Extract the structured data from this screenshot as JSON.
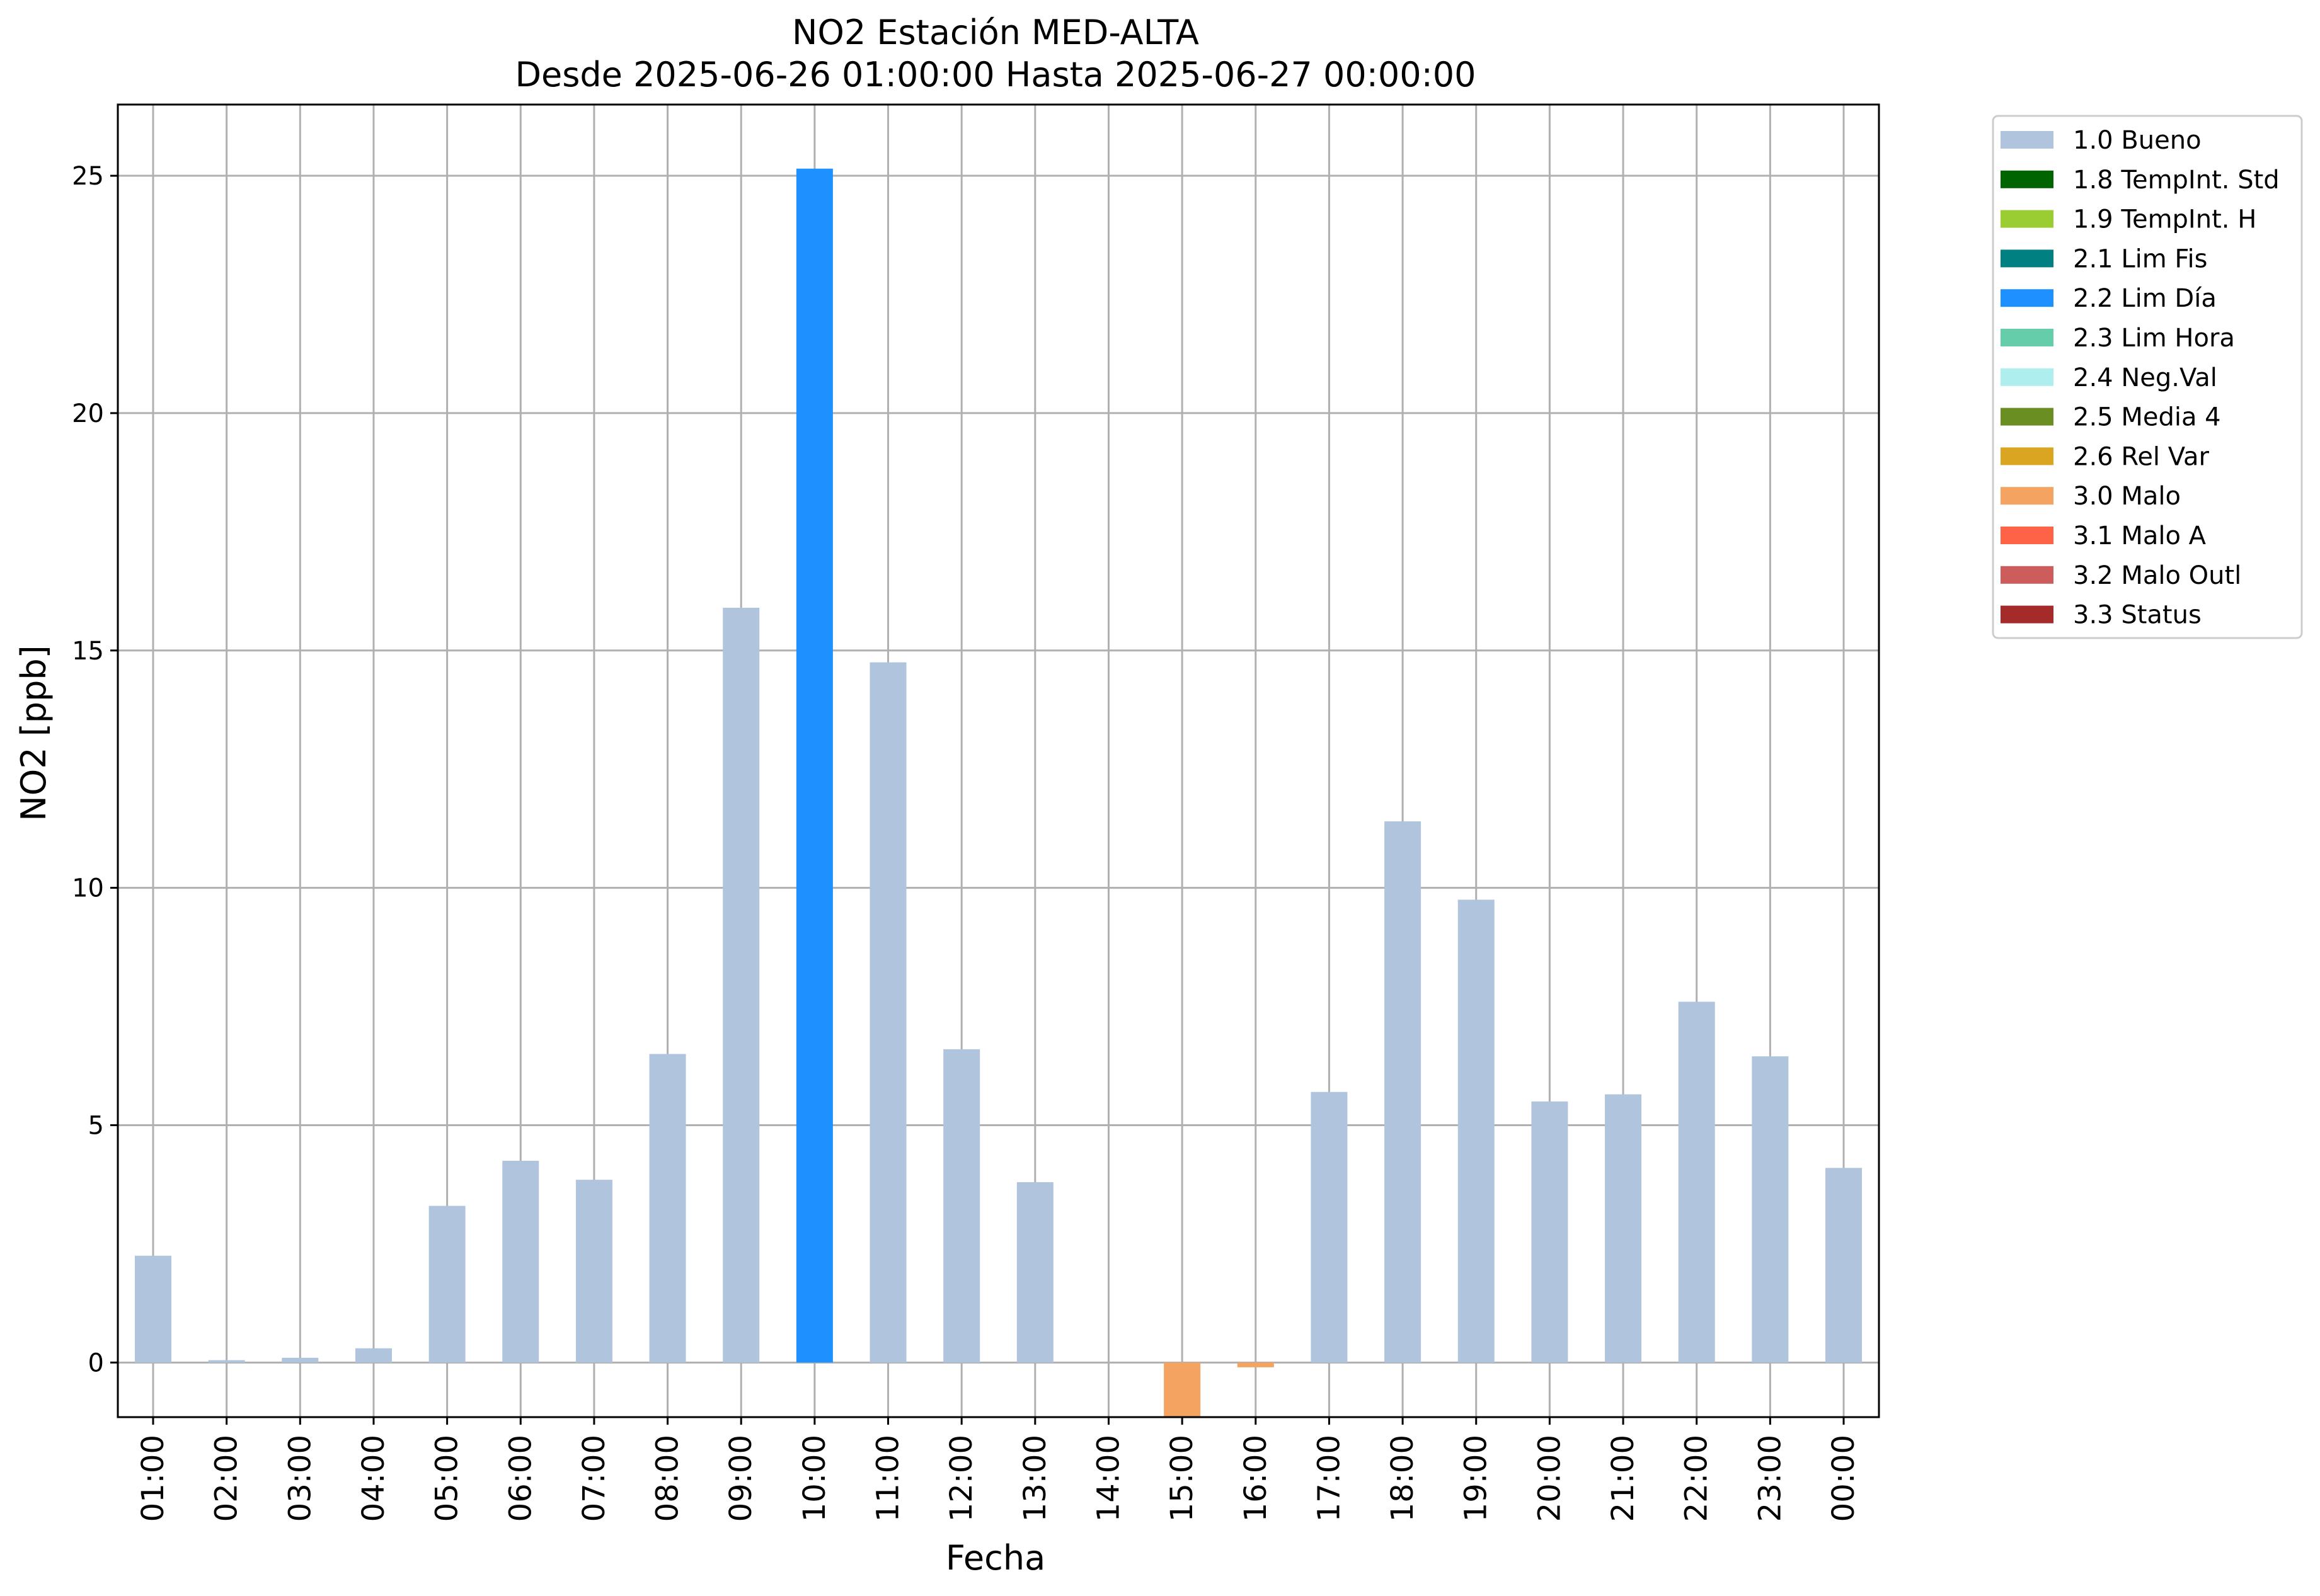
{
  "chart_data": {
    "type": "bar",
    "title": "NO2 Estación MED-ALTA",
    "subtitle": "Desde 2025-06-26 01:00:00 Hasta 2025-06-27 00:00:00",
    "xlabel": "Fecha",
    "ylabel": "NO2 [ppb]",
    "ylim": [
      -1.15,
      26.5
    ],
    "yticks": [
      0,
      5,
      10,
      15,
      20,
      25
    ],
    "grid": true,
    "legend_position": "outside-top-right",
    "categories": [
      "01:00",
      "02:00",
      "03:00",
      "04:00",
      "05:00",
      "06:00",
      "07:00",
      "08:00",
      "09:00",
      "10:00",
      "11:00",
      "12:00",
      "13:00",
      "14:00",
      "15:00",
      "16:00",
      "17:00",
      "18:00",
      "19:00",
      "20:00",
      "21:00",
      "22:00",
      "23:00",
      "00:00"
    ],
    "values": [
      2.25,
      0.05,
      0.1,
      0.3,
      3.3,
      4.25,
      3.85,
      6.5,
      15.9,
      25.15,
      14.75,
      6.6,
      3.8,
      0.0,
      -1.2,
      -0.1,
      5.7,
      11.4,
      9.75,
      5.5,
      5.65,
      7.6,
      6.45,
      4.1
    ],
    "flags": [
      "1.0 Bueno",
      "1.0 Bueno",
      "1.0 Bueno",
      "1.0 Bueno",
      "1.0 Bueno",
      "1.0 Bueno",
      "1.0 Bueno",
      "1.0 Bueno",
      "1.0 Bueno",
      "2.2 Lim Día",
      "1.0 Bueno",
      "1.0 Bueno",
      "1.0 Bueno",
      "1.0 Bueno",
      "3.0 Malo",
      "3.0 Malo",
      "1.0 Bueno",
      "1.0 Bueno",
      "1.0 Bueno",
      "1.0 Bueno",
      "1.0 Bueno",
      "1.0 Bueno",
      "1.0 Bueno",
      "1.0 Bueno"
    ],
    "legend": [
      {
        "label": "1.0 Bueno",
        "color": "#b0c4de"
      },
      {
        "label": "1.8 TempInt. Std",
        "color": "#006400"
      },
      {
        "label": "1.9 TempInt. H",
        "color": "#9acd32"
      },
      {
        "label": "2.1 Lim Fis",
        "color": "#008080"
      },
      {
        "label": "2.2 Lim Día",
        "color": "#1e90ff"
      },
      {
        "label": "2.3 Lim Hora",
        "color": "#66cdaa"
      },
      {
        "label": "2.4 Neg.Val",
        "color": "#afeeee"
      },
      {
        "label": "2.5 Media 4",
        "color": "#6b8e23"
      },
      {
        "label": "2.6 Rel Var",
        "color": "#daa520"
      },
      {
        "label": "3.0 Malo",
        "color": "#f4a460"
      },
      {
        "label": "3.1 Malo A",
        "color": "#ff6347"
      },
      {
        "label": "3.2 Malo Outl",
        "color": "#cd5c5c"
      },
      {
        "label": "3.3 Status",
        "color": "#a52a2a"
      }
    ]
  }
}
